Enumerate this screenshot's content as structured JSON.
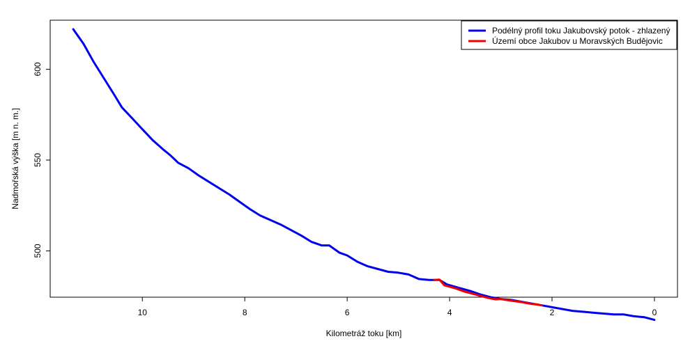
{
  "chart_data": {
    "type": "line",
    "title": "",
    "xlabel": "Kilometráž toku [km]",
    "ylabel": "Nadmořská výška [m n. m.]",
    "x_reversed": true,
    "xlim": [
      11.8,
      -0.45
    ],
    "ylim": [
      474.5,
      627
    ],
    "x_ticks": [
      10,
      8,
      6,
      4,
      2,
      0
    ],
    "x_tick_labels": [
      "10",
      "8",
      "6",
      "4",
      "2",
      "0"
    ],
    "y_ticks": [
      500,
      550,
      600
    ],
    "y_tick_labels": [
      "500",
      "550",
      "600"
    ],
    "grid": false,
    "legend_position": "top-right",
    "series": [
      {
        "name": "Podélný profil toku Jakubovský potok - zhlazený",
        "color": "#0000ee",
        "x": [
          11.35,
          11.15,
          10.95,
          10.75,
          10.55,
          10.4,
          10.2,
          10.0,
          9.8,
          9.6,
          9.45,
          9.3,
          9.1,
          8.9,
          8.7,
          8.5,
          8.3,
          8.1,
          7.9,
          7.7,
          7.5,
          7.3,
          7.1,
          6.9,
          6.7,
          6.5,
          6.35,
          6.15,
          6.0,
          5.8,
          5.6,
          5.4,
          5.2,
          5.0,
          4.8,
          4.6,
          4.4,
          4.2,
          4.05,
          3.8,
          3.6,
          3.4,
          3.2,
          3.0,
          2.8,
          2.6,
          2.4,
          2.2,
          2.0,
          1.8,
          1.6,
          1.4,
          1.2,
          1.0,
          0.8,
          0.6,
          0.4,
          0.2,
          0.0
        ],
        "y": [
          622.0,
          614.0,
          604.0,
          595.0,
          586.0,
          579.0,
          573.0,
          567.0,
          561.0,
          556.0,
          552.5,
          548.5,
          545.5,
          541.5,
          538.0,
          534.5,
          531.0,
          527.0,
          523.0,
          519.5,
          517.0,
          514.5,
          511.5,
          508.5,
          505.0,
          503.0,
          503.0,
          499.0,
          497.5,
          494.0,
          491.5,
          490.0,
          488.5,
          488.0,
          487.0,
          484.5,
          484.0,
          484.0,
          481.5,
          479.5,
          478.0,
          476.0,
          474.5,
          473.5,
          473.0,
          472.0,
          471.0,
          470.0,
          469.0,
          468.0,
          467.0,
          466.5,
          466.0,
          465.5,
          465.0,
          465.0,
          464.0,
          463.5,
          462.0
        ]
      },
      {
        "name": "Území obce Jakubov u Moravských Budějovic",
        "color": "#ee0000",
        "x": [
          4.3,
          4.2,
          4.1,
          4.0,
          3.9,
          3.8,
          3.7,
          3.6,
          3.5,
          3.4,
          3.3,
          3.2,
          3.1,
          3.0,
          2.9,
          2.8,
          2.7,
          2.6,
          2.5,
          2.4,
          2.3,
          2.2
        ],
        "y": [
          484.0,
          484.2,
          481.0,
          480.3,
          479.5,
          478.5,
          477.5,
          476.8,
          476.0,
          475.2,
          474.5,
          473.8,
          473.3,
          473.5,
          473.0,
          472.6,
          472.2,
          471.8,
          471.3,
          470.8,
          470.5,
          470.0
        ]
      }
    ]
  }
}
